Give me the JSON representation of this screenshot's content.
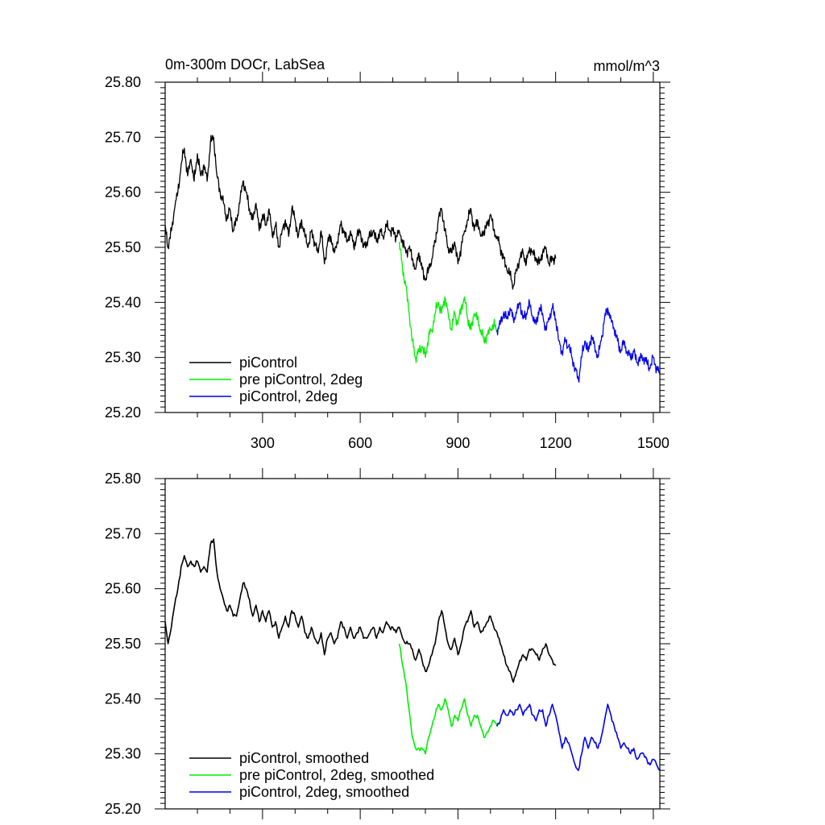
{
  "chart_data": [
    {
      "type": "line",
      "title_left": "0m-300m DOCr, LabSea",
      "title_right": "mmol/m^3",
      "xlim": [
        1,
        1520
      ],
      "ylim": [
        25.2,
        25.8
      ],
      "xticks": [
        300,
        600,
        900,
        1200,
        1500
      ],
      "xtick_labels": [
        "300",
        "600",
        "900",
        "1200",
        "1500"
      ],
      "yticks": [
        25.2,
        25.3,
        25.4,
        25.5,
        25.6,
        25.7,
        25.8
      ],
      "ytick_labels": [
        "25.20",
        "25.30",
        "25.40",
        "25.50",
        "25.60",
        "25.70",
        "25.80"
      ],
      "legend_position": "bottom-left",
      "series": [
        {
          "name": "piControl",
          "color": "#000000",
          "x": [
            1,
            10,
            20,
            30,
            40,
            50,
            60,
            70,
            80,
            90,
            100,
            110,
            120,
            130,
            140,
            150,
            160,
            170,
            180,
            190,
            200,
            210,
            220,
            230,
            240,
            250,
            260,
            270,
            280,
            290,
            300,
            310,
            320,
            330,
            340,
            350,
            360,
            370,
            380,
            390,
            400,
            410,
            420,
            430,
            440,
            450,
            460,
            470,
            480,
            490,
            500,
            510,
            520,
            530,
            540,
            550,
            560,
            570,
            580,
            590,
            600,
            610,
            620,
            630,
            640,
            650,
            660,
            670,
            680,
            690,
            700,
            710,
            720,
            730,
            740,
            750,
            760,
            770,
            780,
            790,
            800,
            810,
            820,
            830,
            840,
            850,
            860,
            870,
            880,
            890,
            900,
            910,
            920,
            930,
            940,
            950,
            960,
            970,
            980,
            990,
            1000,
            1010,
            1020,
            1030,
            1040,
            1050,
            1060,
            1070,
            1080,
            1090,
            1100,
            1110,
            1120,
            1130,
            1140,
            1150,
            1160,
            1170,
            1180,
            1190,
            1200
          ],
          "y": [
            25.54,
            25.5,
            25.53,
            25.57,
            25.6,
            25.65,
            25.68,
            25.63,
            25.66,
            25.62,
            25.67,
            25.63,
            25.65,
            25.62,
            25.69,
            25.7,
            25.63,
            25.6,
            25.58,
            25.55,
            25.57,
            25.53,
            25.55,
            25.58,
            25.62,
            25.6,
            25.57,
            25.55,
            25.58,
            25.53,
            25.56,
            25.54,
            25.57,
            25.52,
            25.54,
            25.5,
            25.53,
            25.55,
            25.52,
            25.57,
            25.55,
            25.52,
            25.55,
            25.52,
            25.5,
            25.53,
            25.51,
            25.49,
            25.53,
            25.47,
            25.51,
            25.52,
            25.49,
            25.51,
            25.54,
            25.53,
            25.51,
            25.53,
            25.5,
            25.52,
            25.53,
            25.5,
            25.51,
            25.52,
            25.53,
            25.51,
            25.53,
            25.52,
            25.54,
            25.53,
            25.53,
            25.52,
            25.53,
            25.51,
            25.49,
            25.5,
            25.48,
            25.46,
            25.49,
            25.46,
            25.44,
            25.46,
            25.48,
            25.51,
            25.55,
            25.57,
            25.53,
            25.5,
            25.49,
            25.51,
            25.47,
            25.5,
            25.53,
            25.55,
            25.57,
            25.53,
            25.55,
            25.52,
            25.53,
            25.54,
            25.56,
            25.53,
            25.52,
            25.5,
            25.48,
            25.46,
            25.45,
            25.43,
            25.46,
            25.48,
            25.49,
            25.47,
            25.5,
            25.49,
            25.48,
            25.47,
            25.49,
            25.5,
            25.47,
            25.48,
            25.48
          ]
        },
        {
          "name": "pre piControl, 2deg",
          "color": "#00ee00",
          "x": [
            720,
            730,
            740,
            750,
            760,
            770,
            780,
            790,
            800,
            810,
            820,
            830,
            840,
            850,
            860,
            870,
            880,
            890,
            900,
            910,
            920,
            930,
            940,
            950,
            960,
            970,
            980,
            990,
            1000,
            1010,
            1020
          ],
          "y": [
            25.51,
            25.46,
            25.43,
            25.38,
            25.33,
            25.3,
            25.31,
            25.32,
            25.3,
            25.34,
            25.35,
            25.38,
            25.4,
            25.38,
            25.41,
            25.38,
            25.35,
            25.38,
            25.36,
            25.39,
            25.41,
            25.37,
            25.35,
            25.38,
            25.37,
            25.35,
            25.33,
            25.34,
            25.35,
            25.36,
            25.35
          ]
        },
        {
          "name": "piControl, 2deg",
          "color": "#0000ee",
          "x": [
            1020,
            1030,
            1040,
            1050,
            1060,
            1070,
            1080,
            1090,
            1100,
            1110,
            1120,
            1130,
            1140,
            1150,
            1160,
            1170,
            1180,
            1190,
            1200,
            1210,
            1220,
            1230,
            1240,
            1250,
            1260,
            1270,
            1280,
            1290,
            1300,
            1310,
            1320,
            1330,
            1340,
            1350,
            1360,
            1370,
            1380,
            1390,
            1400,
            1410,
            1420,
            1430,
            1440,
            1450,
            1460,
            1470,
            1480,
            1490,
            1500,
            1510,
            1520
          ],
          "y": [
            25.35,
            25.36,
            25.38,
            25.37,
            25.39,
            25.37,
            25.38,
            25.4,
            25.37,
            25.38,
            25.4,
            25.37,
            25.36,
            25.39,
            25.38,
            25.35,
            25.37,
            25.39,
            25.37,
            25.33,
            25.31,
            25.33,
            25.32,
            25.3,
            25.28,
            25.26,
            25.3,
            25.33,
            25.31,
            25.34,
            25.32,
            25.3,
            25.33,
            25.37,
            25.39,
            25.37,
            25.35,
            25.33,
            25.31,
            25.33,
            25.31,
            25.3,
            25.31,
            25.29,
            25.3,
            25.3,
            25.29,
            25.28,
            25.3,
            25.28,
            25.27
          ]
        }
      ]
    },
    {
      "type": "line",
      "xlim": [
        1,
        1520
      ],
      "ylim": [
        25.2,
        25.8
      ],
      "xticks": [
        300,
        600,
        900,
        1200,
        1500
      ],
      "yticks": [
        25.2,
        25.3,
        25.4,
        25.5,
        25.6,
        25.7,
        25.8
      ],
      "ytick_labels": [
        "25.20",
        "25.30",
        "25.40",
        "25.50",
        "25.60",
        "25.70",
        "25.80"
      ],
      "legend_position": "bottom-left",
      "series": [
        {
          "name": "piControl, smoothed",
          "color": "#000000",
          "x": [
            1,
            10,
            20,
            30,
            40,
            50,
            60,
            70,
            80,
            90,
            100,
            110,
            120,
            130,
            140,
            150,
            160,
            170,
            180,
            190,
            200,
            210,
            220,
            230,
            240,
            250,
            260,
            270,
            280,
            290,
            300,
            310,
            320,
            330,
            340,
            350,
            360,
            370,
            380,
            390,
            400,
            410,
            420,
            430,
            440,
            450,
            460,
            470,
            480,
            490,
            500,
            510,
            520,
            530,
            540,
            550,
            560,
            570,
            580,
            590,
            600,
            610,
            620,
            630,
            640,
            650,
            660,
            670,
            680,
            690,
            700,
            710,
            720,
            730,
            740,
            750,
            760,
            770,
            780,
            790,
            800,
            810,
            820,
            830,
            840,
            850,
            860,
            870,
            880,
            890,
            900,
            910,
            920,
            930,
            940,
            950,
            960,
            970,
            980,
            990,
            1000,
            1010,
            1020,
            1030,
            1040,
            1050,
            1060,
            1070,
            1080,
            1090,
            1100,
            1110,
            1120,
            1130,
            1140,
            1150,
            1160,
            1170,
            1180,
            1190,
            1200
          ],
          "y": [
            25.54,
            25.5,
            25.53,
            25.57,
            25.6,
            25.64,
            25.66,
            25.64,
            25.65,
            25.64,
            25.65,
            25.63,
            25.64,
            25.63,
            25.68,
            25.69,
            25.63,
            25.6,
            25.58,
            25.56,
            25.57,
            25.55,
            25.55,
            25.58,
            25.61,
            25.6,
            25.58,
            25.55,
            25.57,
            25.54,
            25.56,
            25.54,
            25.56,
            25.53,
            25.54,
            25.51,
            25.53,
            25.55,
            25.53,
            25.56,
            25.55,
            25.53,
            25.55,
            25.52,
            25.51,
            25.53,
            25.51,
            25.5,
            25.52,
            25.48,
            25.51,
            25.52,
            25.5,
            25.51,
            25.54,
            25.53,
            25.51,
            25.53,
            25.51,
            25.52,
            25.53,
            25.51,
            25.51,
            25.52,
            25.53,
            25.51,
            25.53,
            25.52,
            25.54,
            25.53,
            25.53,
            25.52,
            25.53,
            25.51,
            25.5,
            25.5,
            25.49,
            25.47,
            25.49,
            25.47,
            25.45,
            25.46,
            25.48,
            25.5,
            25.54,
            25.56,
            25.53,
            25.5,
            25.49,
            25.51,
            25.48,
            25.5,
            25.53,
            25.54,
            25.56,
            25.53,
            25.54,
            25.52,
            25.53,
            25.54,
            25.55,
            25.53,
            25.52,
            25.5,
            25.48,
            25.46,
            25.45,
            25.43,
            25.45,
            25.47,
            25.48,
            25.47,
            25.49,
            25.49,
            25.48,
            25.47,
            25.49,
            25.5,
            25.48,
            25.47,
            25.46
          ]
        },
        {
          "name": "pre piControl, 2deg, smoothed",
          "color": "#00ee00",
          "x": [
            720,
            730,
            740,
            750,
            760,
            770,
            780,
            790,
            800,
            810,
            820,
            830,
            840,
            850,
            860,
            870,
            880,
            890,
            900,
            910,
            920,
            930,
            940,
            950,
            960,
            970,
            980,
            990,
            1000,
            1010,
            1020
          ],
          "y": [
            25.5,
            25.46,
            25.43,
            25.38,
            25.33,
            25.31,
            25.31,
            25.31,
            25.3,
            25.33,
            25.35,
            25.37,
            25.39,
            25.38,
            25.4,
            25.38,
            25.35,
            25.37,
            25.36,
            25.38,
            25.4,
            25.37,
            25.35,
            25.37,
            25.37,
            25.35,
            25.33,
            25.34,
            25.35,
            25.36,
            25.35
          ]
        },
        {
          "name": "piControl, 2deg, smoothed",
          "color": "#0000ee",
          "x": [
            1020,
            1030,
            1040,
            1050,
            1060,
            1070,
            1080,
            1090,
            1100,
            1110,
            1120,
            1130,
            1140,
            1150,
            1160,
            1170,
            1180,
            1190,
            1200,
            1210,
            1220,
            1230,
            1240,
            1250,
            1260,
            1270,
            1280,
            1290,
            1300,
            1310,
            1320,
            1330,
            1340,
            1350,
            1360,
            1370,
            1380,
            1390,
            1400,
            1410,
            1420,
            1430,
            1440,
            1450,
            1460,
            1470,
            1480,
            1490,
            1500,
            1510,
            1520
          ],
          "y": [
            25.35,
            25.36,
            25.38,
            25.37,
            25.38,
            25.37,
            25.38,
            25.39,
            25.37,
            25.38,
            25.39,
            25.37,
            25.36,
            25.38,
            25.38,
            25.35,
            25.37,
            25.39,
            25.37,
            25.34,
            25.31,
            25.33,
            25.32,
            25.3,
            25.28,
            25.27,
            25.3,
            25.33,
            25.31,
            25.33,
            25.32,
            25.31,
            25.33,
            25.36,
            25.39,
            25.37,
            25.35,
            25.33,
            25.31,
            25.32,
            25.31,
            25.3,
            25.31,
            25.29,
            25.3,
            25.3,
            25.29,
            25.28,
            25.29,
            25.28,
            25.27
          ]
        }
      ]
    }
  ]
}
